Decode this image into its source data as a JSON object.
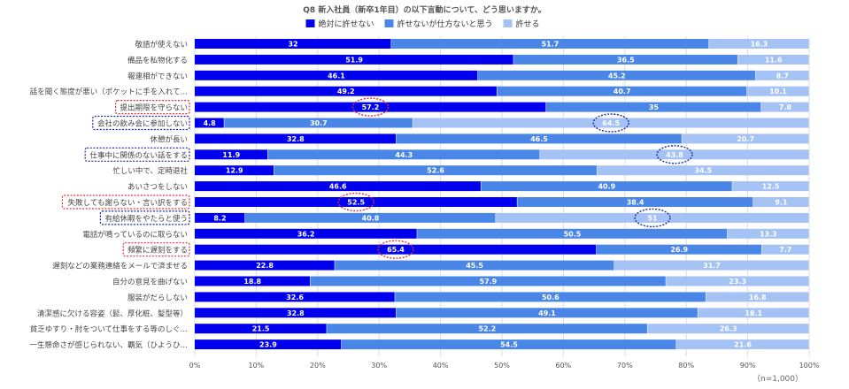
{
  "chart_data": {
    "type": "bar",
    "orientation": "horizontal",
    "stacked": true,
    "title": "Q8 新入社員（新卒1年目）の以下言動について、どう思いますか。",
    "legend_position": "top",
    "grid": true,
    "xlim": [
      0,
      100
    ],
    "x_ticks": [
      "0%",
      "10%",
      "20%",
      "30%",
      "40%",
      "50%",
      "60%",
      "70%",
      "80%",
      "90%",
      "100%"
    ],
    "categories": [
      "敬語が使えない",
      "備品を私物化する",
      "報連相ができない",
      "話を聞く態度が悪い（ポケットに手を入れて…",
      "提出期限を守らない",
      "会社の飲み会に参加しない",
      "休憩が長い",
      "仕事中に関係のない話をする",
      "忙しい中で、定時退社",
      "あいさつをしない",
      "失敗しても謝らない・言い訳をする",
      "有給休暇をやたらと使う",
      "電話が鳴っているのに取らない",
      "頻繁に遅刻をする",
      "遅刻などの業務連絡をメールで済ませる",
      "自分の意見を曲げない",
      "服装がだらしない",
      "清潔感に欠ける容姿（髭、厚化粧、髪型等）",
      "貧乏ゆすり・肘をついて仕事をする等のしぐ…",
      "一生懸命さが感じられない、覇気（ひようひ…"
    ],
    "series": [
      {
        "name": "絶対に許せない",
        "color": "#0000ee",
        "values": [
          32,
          51.9,
          46.1,
          49.2,
          57.2,
          4.8,
          32.8,
          11.9,
          12.9,
          46.6,
          52.5,
          8.2,
          36.2,
          65.4,
          22.8,
          18.8,
          32.6,
          32.8,
          21.5,
          23.9
        ]
      },
      {
        "name": "許せないが仕方ないと思う",
        "color": "#4a86e8",
        "values": [
          51.7,
          36.5,
          45.2,
          40.7,
          35,
          30.7,
          46.5,
          44.3,
          52.6,
          40.9,
          38.4,
          40.8,
          50.5,
          26.9,
          45.5,
          57.9,
          50.6,
          49.1,
          52.2,
          54.5
        ]
      },
      {
        "name": "許せる",
        "color": "#a4c2f4",
        "values": [
          16.3,
          11.6,
          8.7,
          10.1,
          7.8,
          64.5,
          20.7,
          43.8,
          34.5,
          12.5,
          9.1,
          51,
          13.3,
          7.7,
          31.7,
          23.3,
          16.8,
          18.1,
          26.3,
          21.6
        ]
      }
    ],
    "highlighted_categories": {
      "red": [
        4,
        10,
        13
      ],
      "navy": [
        5,
        7,
        11
      ]
    },
    "note": "（n=1,000）"
  }
}
